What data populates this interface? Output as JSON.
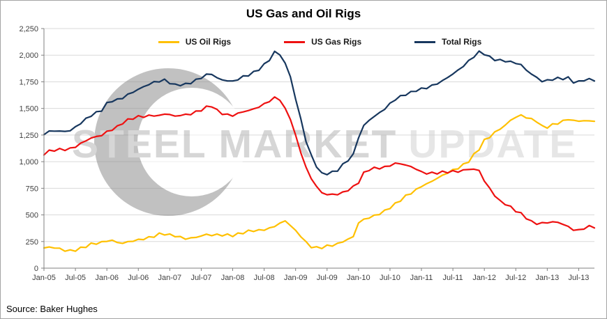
{
  "footer": {
    "source": "Source: Baker Hughes"
  },
  "watermark": {
    "part1": "STEEL MARKET",
    "part2": "UPDATE"
  },
  "chart_data": {
    "type": "line",
    "title": "US Gas and Oil Rigs",
    "xlabel": "",
    "ylabel": "",
    "grid": true,
    "legend_position": "top-inside",
    "ylim": [
      0,
      2250
    ],
    "y_ticks": [
      0,
      250,
      500,
      750,
      1000,
      1250,
      1500,
      1750,
      2000,
      2250
    ],
    "x_tick_every": 6,
    "x_start": "Jan-05",
    "x_end": "Oct-13",
    "x_tick_labels": [
      "Jan-05",
      "Jul-05",
      "Jan-06",
      "Jul-06",
      "Jan-07",
      "Jul-07",
      "Jan-08",
      "Jul-08",
      "Jan-09",
      "Jul-09",
      "Jan-10",
      "Jul-10",
      "Jan-11",
      "Jul-11",
      "Jan-12",
      "Jul-12",
      "Jan-13",
      "Jul-13"
    ],
    "series": [
      {
        "name": "US Oil Rigs",
        "color": "#FFC000",
        "values": [
          190,
          188,
          182,
          175,
          170,
          172,
          180,
          190,
          200,
          215,
          225,
          240,
          265,
          270,
          250,
          232,
          238,
          246,
          260,
          280,
          296,
          310,
          322,
          316,
          300,
          296,
          290,
          286,
          292,
          296,
          300,
          306,
          300,
          310,
          316,
          322,
          316,
          320,
          326,
          336,
          346,
          356,
          370,
          386,
          396,
          420,
          430,
          396,
          346,
          310,
          250,
          210,
          190,
          186,
          196,
          210,
          230,
          260,
          280,
          300,
          420,
          446,
          466,
          490,
          520,
          546,
          576,
          600,
          630,
          666,
          700,
          740,
          780,
          800,
          818,
          838,
          858,
          890,
          920,
          950,
          980,
          1010,
          1060,
          1110,
          1190,
          1230,
          1280,
          1320,
          1350,
          1390,
          1410,
          1425,
          1410,
          1400,
          1390,
          1340,
          1330,
          1340,
          1352,
          1370,
          1400,
          1390,
          1395,
          1390,
          1382,
          1372
        ]
      },
      {
        "name": "US Gas Rigs",
        "color": "#EE1111",
        "values": [
          1070,
          1088,
          1100,
          1110,
          1120,
          1132,
          1150,
          1170,
          1190,
          1210,
          1228,
          1250,
          1290,
          1312,
          1332,
          1360,
          1380,
          1400,
          1420,
          1432,
          1440,
          1442,
          1430,
          1440,
          1432,
          1420,
          1440,
          1450,
          1458,
          1470,
          1480,
          1500,
          1516,
          1480,
          1460,
          1450,
          1440,
          1450,
          1460,
          1470,
          1490,
          1520,
          1550,
          1580,
          1600,
          1580,
          1480,
          1400,
          1240,
          1100,
          950,
          850,
          760,
          700,
          680,
          690,
          700,
          720,
          742,
          762,
          800,
          880,
          920,
          940,
          950,
          958,
          968,
          978,
          970,
          960,
          950,
          940,
          912,
          900,
          890,
          886,
          890,
          900,
          910,
          920,
          926,
          934,
          920,
          908,
          810,
          750,
          690,
          640,
          610,
          570,
          530,
          500,
          470,
          440,
          430,
          430,
          430,
          425,
          420,
          405,
          390,
          370,
          365,
          380,
          386,
          378
        ]
      },
      {
        "name": "Total Rigs",
        "color": "#17375E",
        "values": [
          1255,
          1272,
          1282,
          1286,
          1292,
          1304,
          1330,
          1360,
          1390,
          1425,
          1455,
          1490,
          1555,
          1582,
          1582,
          1592,
          1618,
          1646,
          1680,
          1712,
          1736,
          1752,
          1752,
          1756,
          1732,
          1716,
          1730,
          1736,
          1750,
          1766,
          1780,
          1806,
          1816,
          1790,
          1776,
          1772,
          1756,
          1770,
          1786,
          1806,
          1836,
          1876,
          1920,
          1966,
          2026,
          2000,
          1910,
          1796,
          1590,
          1410,
          1200,
          1060,
          950,
          876,
          880,
          900,
          930,
          980,
          1022,
          1062,
          1220,
          1326,
          1386,
          1430,
          1470,
          1504,
          1544,
          1578,
          1600,
          1626,
          1650,
          1680,
          1692,
          1700,
          1708,
          1724,
          1748,
          1790,
          1830,
          1870,
          1906,
          1944,
          1980,
          2018,
          2008,
          1984,
          1970,
          1960,
          1950,
          1930,
          1916,
          1900,
          1860,
          1830,
          1800,
          1762,
          1760,
          1764,
          1772,
          1776,
          1790,
          1760,
          1758,
          1770,
          1766,
          1752
        ]
      }
    ]
  }
}
